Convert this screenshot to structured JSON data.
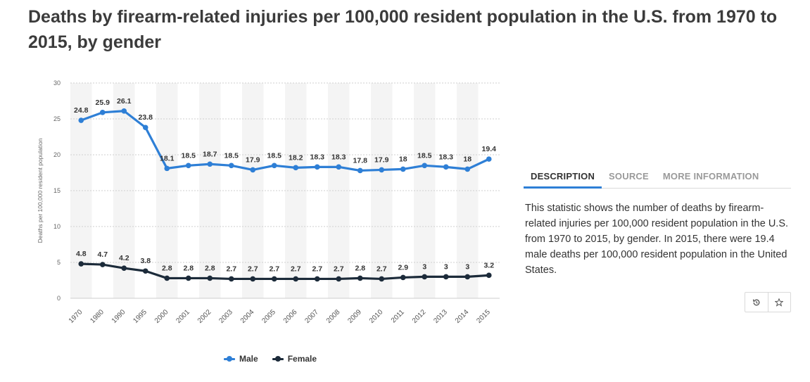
{
  "title": "Deaths by firearm-related injuries per 100,000 resident population in the U.S. from 1970 to 2015, by gender",
  "tabs": [
    {
      "label": "DESCRIPTION",
      "active": true
    },
    {
      "label": "SOURCE",
      "active": false
    },
    {
      "label": "MORE INFORMATION",
      "active": false
    }
  ],
  "description": "This statistic shows the number of deaths by firearm-related injuries per 100,000 resident population in the U.S. from 1970 to 2015, by gender. In 2015, there were 19.4 male deaths per 100,000 resident population in the United States.",
  "icons": {
    "history": "history-icon",
    "star": "star-icon"
  },
  "chart_data": {
    "type": "line",
    "ylabel": "Deaths per 100,000 resident population",
    "xlabel": "",
    "ylim": [
      0,
      30
    ],
    "yticks": [
      0,
      5,
      10,
      15,
      20,
      25,
      30
    ],
    "grid": true,
    "legend": "bottom",
    "categories": [
      "1970",
      "1980",
      "1990",
      "1995",
      "2000",
      "2001",
      "2002",
      "2003",
      "2004",
      "2005",
      "2006",
      "2007",
      "2008",
      "2009",
      "2010",
      "2011",
      "2012",
      "2013",
      "2014",
      "2015"
    ],
    "series": [
      {
        "name": "Male",
        "color": "#2e7fd6",
        "values": [
          24.8,
          25.9,
          26.1,
          23.8,
          18.1,
          18.5,
          18.7,
          18.5,
          17.9,
          18.5,
          18.2,
          18.3,
          18.3,
          17.8,
          17.9,
          18,
          18.5,
          18.3,
          18,
          19.4
        ]
      },
      {
        "name": "Female",
        "color": "#1c2b3a",
        "values": [
          4.8,
          4.7,
          4.2,
          3.8,
          2.8,
          2.8,
          2.8,
          2.7,
          2.7,
          2.7,
          2.7,
          2.7,
          2.7,
          2.8,
          2.7,
          2.9,
          3,
          3,
          3,
          3.2
        ]
      }
    ]
  }
}
